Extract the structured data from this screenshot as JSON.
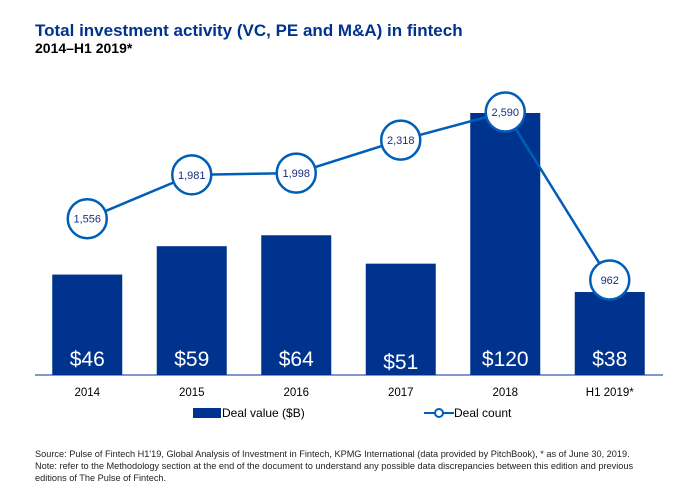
{
  "header": {
    "title": "Total investment activity (VC, PE and M&A) in fintech",
    "subtitle": "2014–H1 2019*"
  },
  "chart_data": {
    "type": "bar",
    "title": "Total investment activity (VC, PE and M&A) in fintech",
    "subtitle": "2014–H1 2019*",
    "xlabel": "",
    "ylabel": "",
    "grid": false,
    "categories": [
      "2014",
      "2015",
      "2016",
      "2017",
      "2018",
      "H1 2019*"
    ],
    "series": [
      {
        "name": "Deal value ($B)",
        "type": "bar",
        "values": [
          46,
          59,
          64,
          51,
          120,
          38
        ],
        "labels": [
          "$46",
          "$59",
          "$64",
          "$51",
          "$120",
          "$38"
        ],
        "color": "#00338D"
      },
      {
        "name": "Deal count",
        "type": "line",
        "values": [
          1556,
          1981,
          1998,
          2318,
          2590,
          962
        ],
        "labels": [
          "1,556",
          "1,981",
          "1,998",
          "2,318",
          "2,590",
          "962"
        ],
        "color": "#005EB8"
      }
    ],
    "bar_ylim": [
      0,
      120
    ],
    "line_ylim": [
      0,
      2590
    ],
    "legend_position": "bottom"
  },
  "legend": {
    "deal_value": "Deal value ($B)",
    "deal_count": "Deal count"
  },
  "footnote": {
    "line1": "Source: Pulse of Fintech H1'19, Global Analysis of Investment in Fintech, KPMG International (data provided by PitchBook), * as of June 30, 2019.",
    "line2": "Note: refer to the Methodology section at the end of the document to understand any possible data discrepancies between this edition and previous editions of The Pulse of Fintech."
  }
}
